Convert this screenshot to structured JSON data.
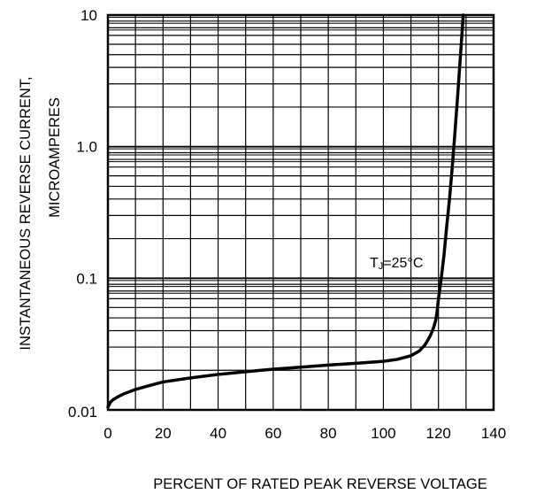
{
  "chart_data": {
    "type": "line",
    "title": "",
    "xlabel": "PERCENT OF RATED PEAK REVERSE VOLTAGE",
    "ylabel_line1": "INSTANTANEOUS  REVERSE  CURRENT,",
    "ylabel_line2": "MICROAMPERES",
    "xlim": [
      0,
      140
    ],
    "ylim": [
      0.01,
      10
    ],
    "y_scale": "log",
    "grid": true,
    "x_ticks": [
      0,
      20,
      40,
      60,
      80,
      100,
      120,
      140
    ],
    "x_tick_labels": [
      "0",
      "20",
      "40",
      "60",
      "80",
      "100",
      "120",
      "140"
    ],
    "y_ticks": [
      0.01,
      0.1,
      1.0,
      10
    ],
    "y_tick_labels": [
      "0.01",
      "0.1",
      "1.0",
      "10"
    ],
    "annotation": {
      "main": "T",
      "sub": "J",
      "rest": "=25°C"
    },
    "series": [
      {
        "x": [
          0,
          1,
          2,
          4,
          6,
          10,
          15,
          20,
          30,
          40,
          50,
          60,
          70,
          80,
          90,
          100,
          105,
          110,
          113,
          115,
          116,
          117,
          118,
          118.5,
          119,
          119.5,
          120,
          121,
          122,
          123,
          124,
          125,
          126,
          127,
          128,
          129
        ],
        "y": [
          0.0105,
          0.0115,
          0.012,
          0.0127,
          0.0133,
          0.0143,
          0.0153,
          0.0163,
          0.0175,
          0.0186,
          0.0195,
          0.0204,
          0.0211,
          0.0219,
          0.0226,
          0.0234,
          0.0242,
          0.0258,
          0.028,
          0.031,
          0.0335,
          0.0365,
          0.041,
          0.044,
          0.048,
          0.056,
          0.07,
          0.1,
          0.15,
          0.25,
          0.4,
          0.7,
          1.3,
          2.5,
          5.0,
          10.0
        ]
      }
    ]
  }
}
